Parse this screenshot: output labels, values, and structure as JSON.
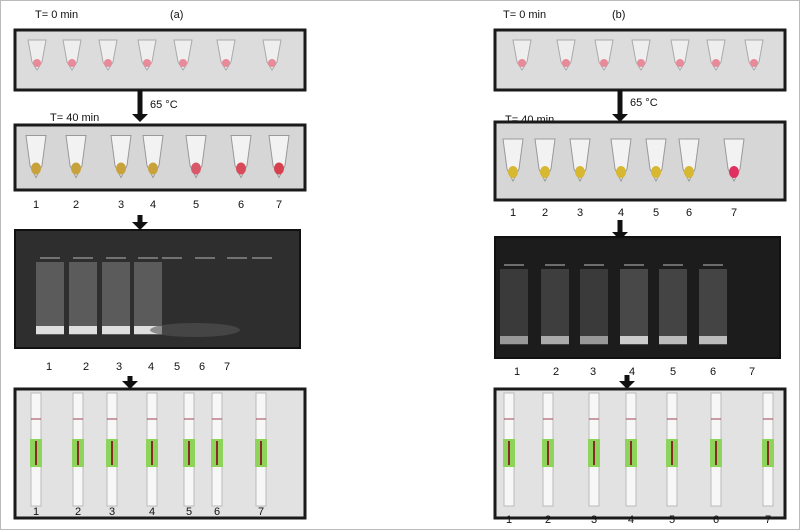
{
  "panels": [
    {
      "label": "(a)",
      "start_time": "T= 0 min",
      "temperature": "65 °C",
      "end_time": "T= 40 min",
      "tube_lanes": [
        "1",
        "2",
        "3",
        "4",
        "5",
        "6",
        "7"
      ],
      "gel_lanes": [
        "1",
        "2",
        "3",
        "4",
        "5",
        "6",
        "7"
      ],
      "strip_lanes": [
        "1",
        "2",
        "3",
        "4",
        "5",
        "6",
        "7"
      ]
    },
    {
      "label": "(b)",
      "start_time": "T= 0 min",
      "temperature": "65 °C",
      "end_time": "T= 40 min",
      "tube_lanes": [
        "1",
        "2",
        "3",
        "4",
        "5",
        "6",
        "7"
      ],
      "gel_lanes": [
        "1",
        "2",
        "3",
        "4",
        "5",
        "6",
        "7"
      ],
      "strip_lanes": [
        "1",
        "2",
        "3",
        "4",
        "5",
        "6",
        "7"
      ]
    }
  ]
}
